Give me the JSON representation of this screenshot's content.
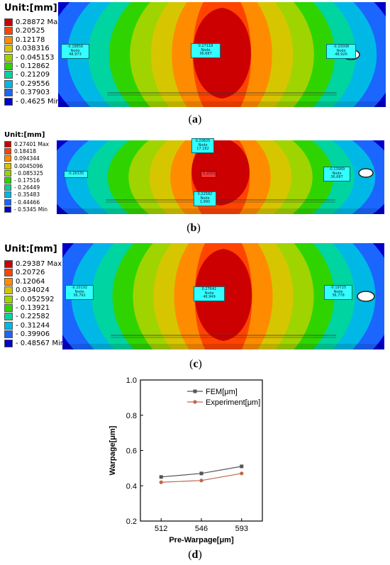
{
  "contour_colors": [
    "#cc0000",
    "#ff4400",
    "#ff8c00",
    "#d6c600",
    "#9fd400",
    "#2fd400",
    "#00d4a0",
    "#00b8e6",
    "#1a66ff",
    "#0000cc"
  ],
  "panels": [
    {
      "id": "a",
      "caption_open": "(",
      "caption_letter": "a",
      "caption_close": ")",
      "unit_title": "Unit:[mm]",
      "levels": [
        "0.28872 Max",
        "0.20525",
        "0.12178",
        "0.038316",
        "- 0.045153",
        "- 0.12862",
        "- 0.21209",
        "- 0.29556",
        "- 0.37903",
        "- 0.4625 Min"
      ],
      "probes": [
        {
          "value": "-0.18856",
          "node_label": "Node",
          "node": "48,973"
        },
        {
          "value": "0.27118",
          "node_label": "Node",
          "node": "36,687"
        },
        {
          "value": "-0.20008",
          "node_label": "Node",
          "node": "48,926"
        }
      ]
    },
    {
      "id": "b",
      "caption_open": "(",
      "caption_letter": "b",
      "caption_close": ")",
      "unit_title": "Unit:[mm]",
      "levels": [
        "0.27401 Max",
        "0.18418",
        "0.094344",
        "0.0045096",
        "- 0.085325",
        "- 0.17516",
        "- 0.26449",
        "- 0.35483",
        "- 0.44466",
        "- 0.5345 Min"
      ],
      "probes": [
        {
          "value": "0.20825",
          "node_label": "Node",
          "node": "17,182"
        },
        {
          "value": "-0.26335",
          "node_label": "",
          "node": ""
        },
        {
          "value": "0.2555",
          "node_label": "",
          "node": ""
        },
        {
          "value": "-0.23989",
          "node_label": "Node",
          "node": "36,687"
        },
        {
          "value": "0.22582",
          "node_label": "Node",
          "node": "1,990"
        }
      ]
    },
    {
      "id": "c",
      "caption_open": "(",
      "caption_letter": "c",
      "caption_close": ")",
      "unit_title": "Unit:[mm]",
      "levels": [
        "0.29387 Max",
        "0.20726",
        "0.12064",
        "0.034024",
        "- 0.052592",
        "- 0.13921",
        "- 0.22582",
        "- 0.31244",
        "- 0.39906",
        "- 0.48567 Min"
      ],
      "probes": [
        {
          "value": "-0.20192",
          "node_label": "Node",
          "node": "36,792"
        },
        {
          "value": "0.27641",
          "node_label": "Node",
          "node": "48,949"
        },
        {
          "value": "-0.19725",
          "node_label": "Node",
          "node": "36,778"
        }
      ]
    }
  ],
  "chart_caption": {
    "open": "(",
    "letter": "d",
    "close": ")"
  },
  "chart_data": {
    "type": "line",
    "categories": [
      "512",
      "546",
      "593"
    ],
    "series": [
      {
        "name": "FEM[μm]",
        "values": [
          0.45,
          0.47,
          0.51
        ],
        "color": "#555555",
        "marker": "square"
      },
      {
        "name": "Experiment[μm]",
        "values": [
          0.42,
          0.43,
          0.47
        ],
        "color": "#c0664a",
        "marker": "circle"
      }
    ],
    "xlabel": "Pre-Warpage[μm]",
    "ylabel": "Warpage[μm]",
    "ylim": [
      0.2,
      1.0
    ],
    "yticks": [
      "0.2",
      "0.4",
      "0.6",
      "0.8",
      "1.0"
    ],
    "legend_position": "top-right",
    "grid": false
  }
}
